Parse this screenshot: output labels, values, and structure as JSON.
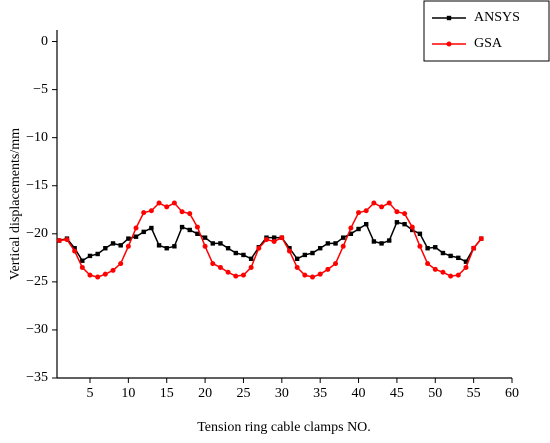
{
  "chart_data": {
    "type": "line",
    "xlabel": "Tension ring cable clamps NO.",
    "ylabel": "Vertical displacements/mm",
    "x": [
      1,
      2,
      3,
      4,
      5,
      6,
      7,
      8,
      9,
      10,
      11,
      12,
      13,
      14,
      15,
      16,
      17,
      18,
      19,
      20,
      21,
      22,
      23,
      24,
      25,
      26,
      27,
      28,
      29,
      30,
      31,
      32,
      33,
      34,
      35,
      36,
      37,
      38,
      39,
      40,
      41,
      42,
      43,
      44,
      45,
      46,
      47,
      48,
      49,
      50,
      51,
      52,
      53,
      54,
      55,
      56
    ],
    "series": [
      {
        "name": "ANSYS",
        "color": "#000000",
        "marker": "square",
        "values": [
          -20.7,
          -20.5,
          -21.5,
          -22.8,
          -22.3,
          -22.1,
          -21.5,
          -21.0,
          -21.2,
          -20.5,
          -20.3,
          -19.8,
          -19.4,
          -21.2,
          -21.5,
          -21.3,
          -19.3,
          -19.6,
          -20.0,
          -20.4,
          -21.0,
          -21.0,
          -21.5,
          -22.0,
          -22.2,
          -22.6,
          -21.4,
          -20.4,
          -20.4,
          -20.4,
          -21.5,
          -22.6,
          -22.2,
          -22.0,
          -21.5,
          -21.0,
          -21.0,
          -20.4,
          -20.0,
          -19.5,
          -19.0,
          -20.8,
          -21.0,
          -20.7,
          -18.8,
          -19.0,
          -19.6,
          -20.0,
          -21.5,
          -21.4,
          -22.0,
          -22.3,
          -22.5,
          -22.9,
          -21.5,
          -20.5
        ]
      },
      {
        "name": "GSA",
        "color": "#ff0000",
        "marker": "circle",
        "values": [
          -20.7,
          -20.6,
          -21.8,
          -23.5,
          -24.3,
          -24.5,
          -24.2,
          -23.8,
          -23.1,
          -21.3,
          -19.4,
          -17.8,
          -17.6,
          -16.8,
          -17.2,
          -16.8,
          -17.7,
          -17.9,
          -19.3,
          -21.3,
          -23.1,
          -23.5,
          -24.0,
          -24.4,
          -24.3,
          -23.5,
          -21.5,
          -20.6,
          -20.8,
          -20.4,
          -21.8,
          -23.5,
          -24.3,
          -24.5,
          -24.2,
          -23.7,
          -23.1,
          -21.3,
          -19.4,
          -17.8,
          -17.6,
          -16.8,
          -17.2,
          -16.8,
          -17.7,
          -17.9,
          -19.3,
          -21.3,
          -23.1,
          -23.7,
          -24.0,
          -24.4,
          -24.3,
          -23.5,
          -21.5,
          -20.5
        ]
      }
    ],
    "xlim": [
      0.7,
      60
    ],
    "xticks": [
      5,
      10,
      15,
      20,
      25,
      30,
      35,
      40,
      45,
      50,
      55,
      60
    ],
    "ylim": [
      -35,
      1.2
    ],
    "yticks": [
      0,
      {
        "value": -5,
        "label": "−5"
      },
      {
        "value": -10,
        "label": "−10"
      },
      {
        "value": -15,
        "label": "−15"
      },
      {
        "value": -20,
        "label": "−20"
      },
      {
        "value": -25,
        "label": "−25"
      },
      {
        "value": -30,
        "label": "−30"
      },
      {
        "value": -35,
        "label": "−35"
      }
    ],
    "legend": "upper right"
  }
}
